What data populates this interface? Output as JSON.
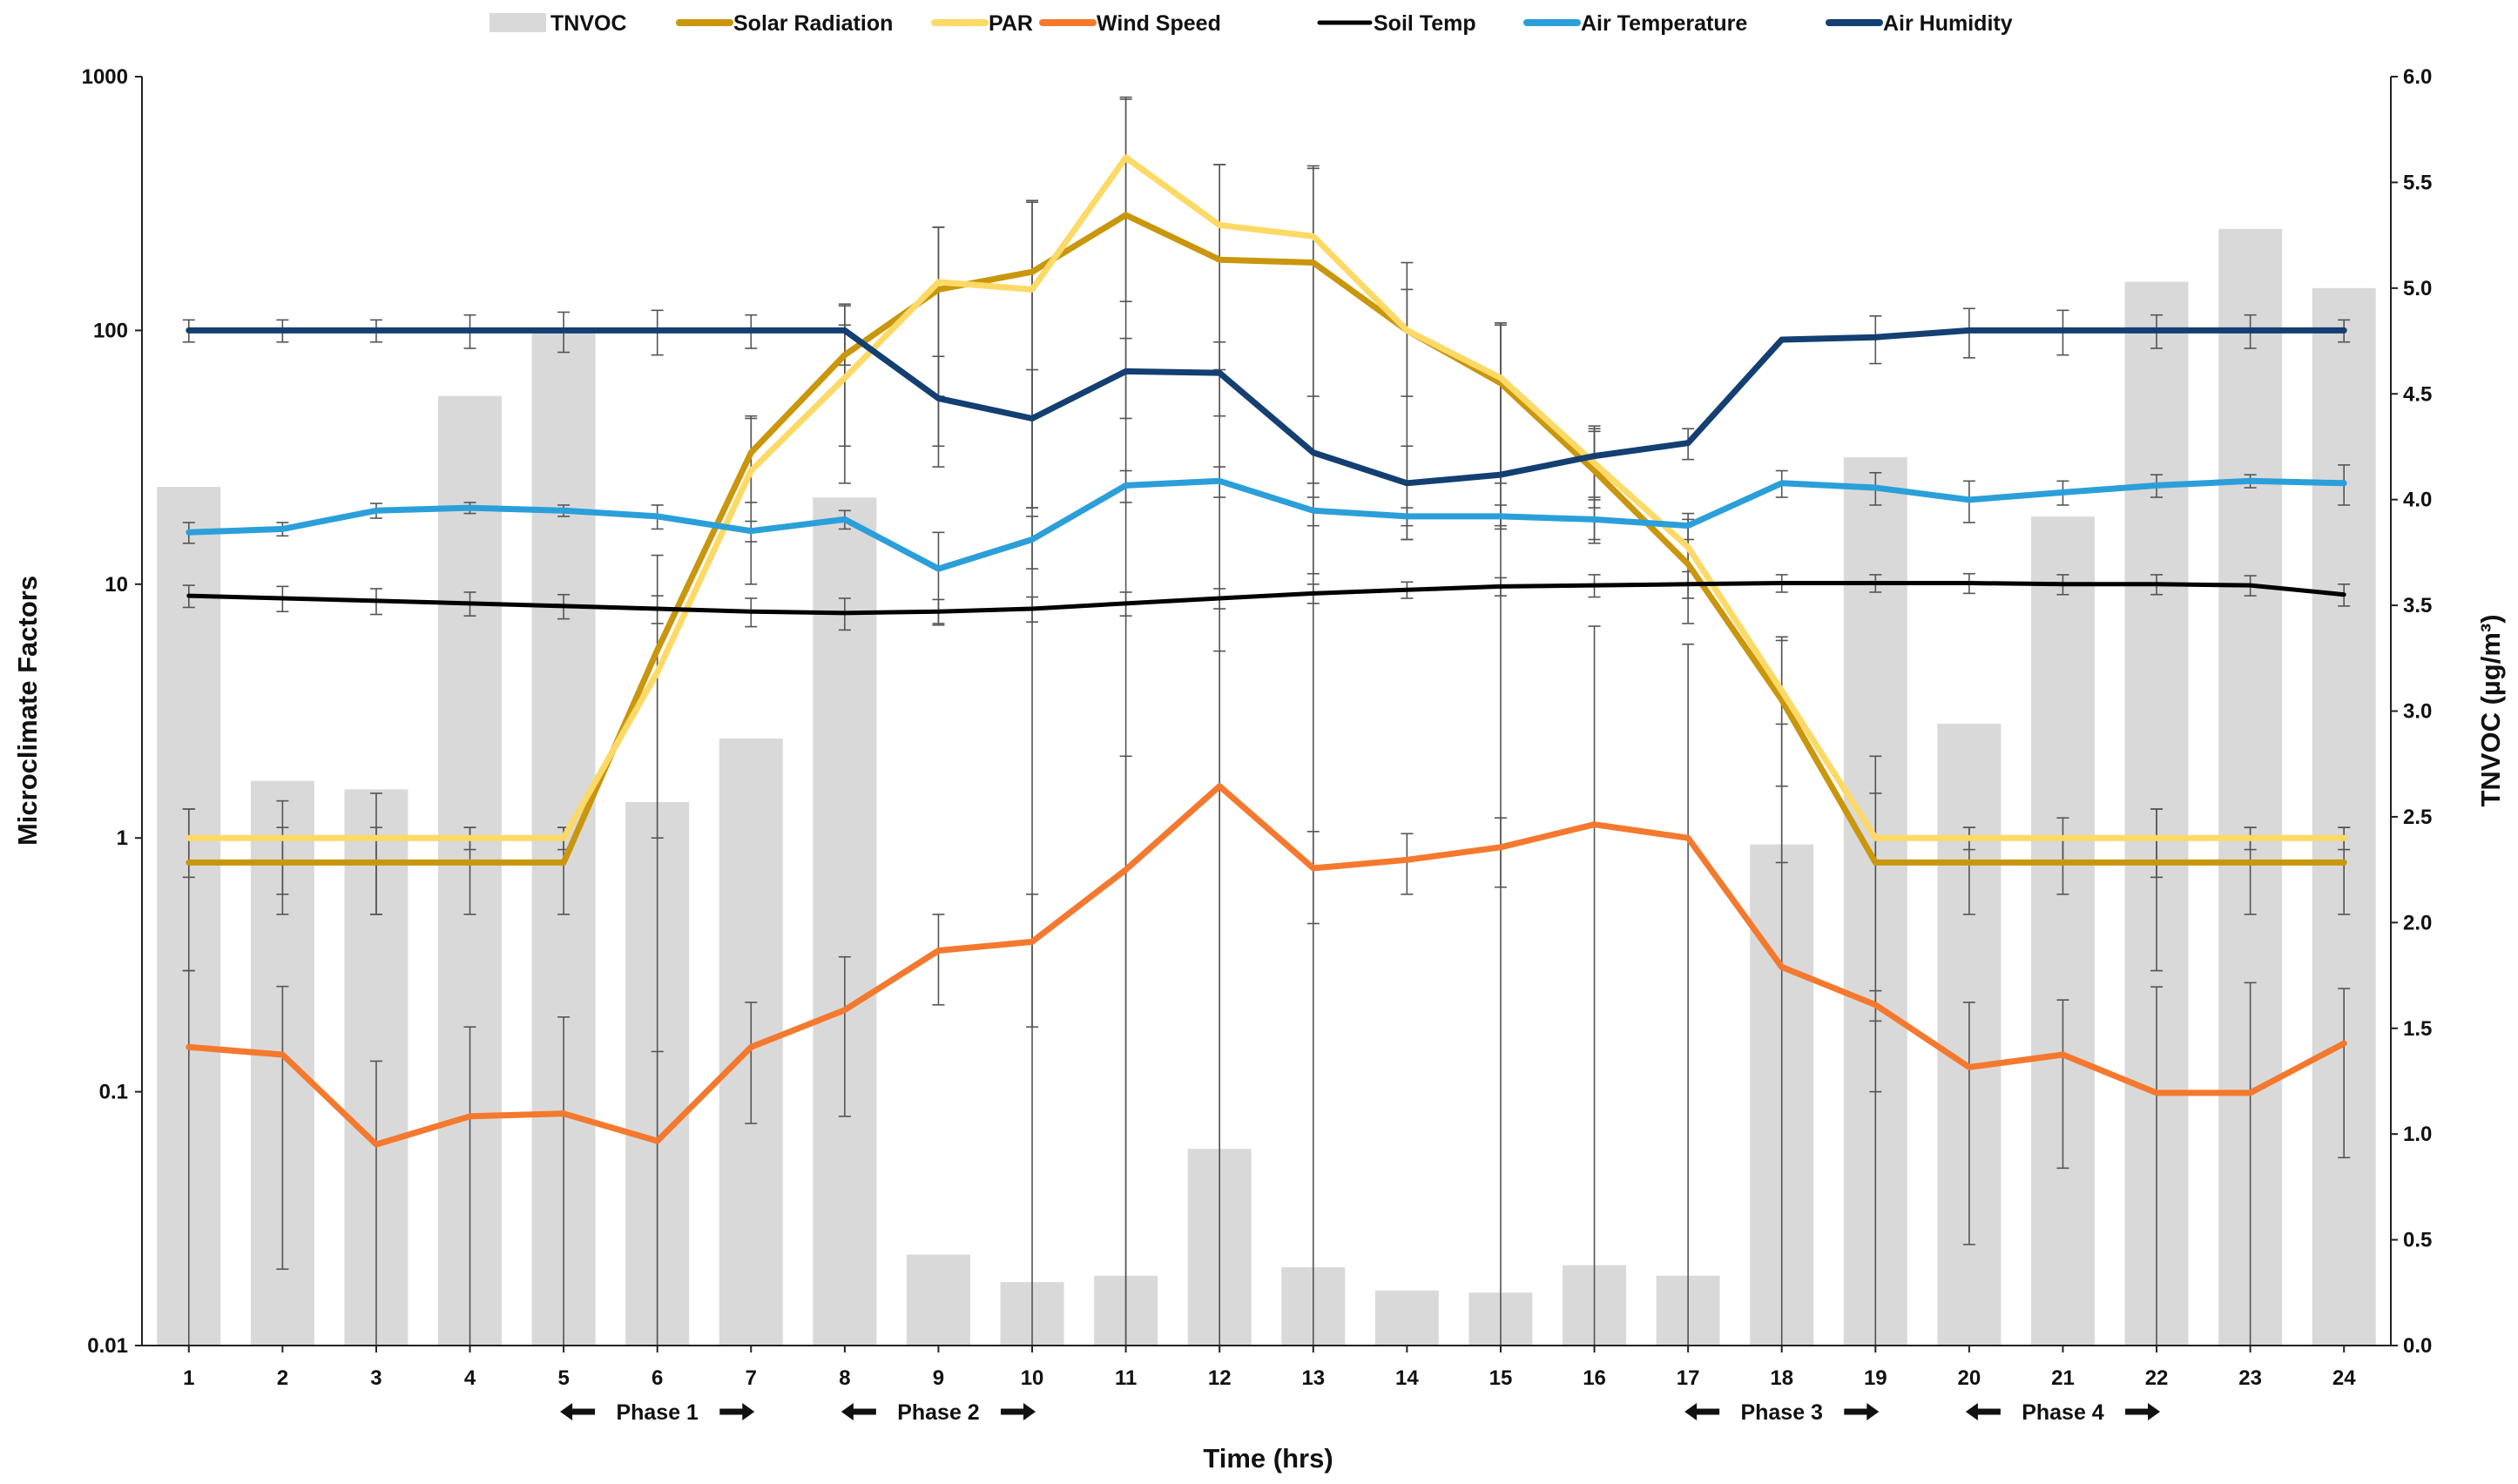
{
  "chart_data": {
    "type": "line+bar",
    "title": "",
    "xlabel": "Time (hrs)",
    "ylabel_left": "Microclimate Factors",
    "ylabel_right": "TNVOC (µg/m³)",
    "left_scale": "log",
    "ylim_left": [
      0.01,
      1000
    ],
    "ylim_right": [
      0,
      6.0
    ],
    "x": [
      1,
      2,
      3,
      4,
      5,
      6,
      7,
      8,
      9,
      10,
      11,
      12,
      13,
      14,
      15,
      16,
      17,
      18,
      19,
      20,
      21,
      22,
      23,
      24
    ],
    "x_tick_labels": [
      "1",
      "2",
      "3",
      "4",
      "5",
      "6",
      "7",
      "8",
      "9",
      "10",
      "11",
      "12",
      "13",
      "14",
      "15",
      "16",
      "17",
      "18",
      "19",
      "20",
      "21",
      "22",
      "23",
      "24"
    ],
    "left_tick_labels": [
      "0.01",
      "0.1",
      "1",
      "10",
      "100",
      "1000"
    ],
    "left_tick_values": [
      0.01,
      0.1,
      1,
      10,
      100,
      1000
    ],
    "right_tick_labels": [
      "0.0",
      "0.5",
      "1.0",
      "1.5",
      "2.0",
      "2.5",
      "3.0",
      "3.5",
      "4.0",
      "4.5",
      "5.0",
      "5.5",
      "6.0"
    ],
    "right_tick_values": [
      0,
      0.5,
      1,
      1.5,
      2,
      2.5,
      3,
      3.5,
      4,
      4.5,
      5,
      5.5,
      6
    ],
    "bars": {
      "name": "TNVOC",
      "color": "#d9d9d9",
      "values": [
        4.06,
        2.67,
        2.63,
        4.49,
        4.8,
        2.57,
        2.87,
        4.01,
        0.43,
        0.3,
        0.33,
        0.93,
        0.37,
        0.26,
        0.25,
        0.38,
        0.33,
        2.37,
        4.2,
        2.94,
        3.92,
        5.03,
        5.28,
        5.0
      ]
    },
    "series": [
      {
        "name": "Solar Radiation",
        "color": "#c9960c",
        "width": 7,
        "values": [
          0.8,
          0.8,
          0.8,
          0.8,
          0.8,
          5.5,
          33,
          80,
          145,
          170,
          285,
          190,
          185,
          100,
          62,
          28,
          12,
          3.5,
          0.8,
          0.8,
          0.8,
          0.8,
          0.8,
          0.8
        ],
        "errors": [
          0.5,
          0.3,
          0.3,
          0.3,
          0.3,
          7.5,
          12,
          45,
          110,
          150,
          530,
          260,
          250,
          85,
          45,
          13,
          5,
          2.7,
          0.7,
          0.3,
          0.2,
          0.5,
          0.3,
          0.3
        ]
      },
      {
        "name": "PAR",
        "color": "#fdd966",
        "width": 7,
        "values": [
          1,
          1,
          1,
          1,
          1,
          4.5,
          28,
          65,
          155,
          145,
          480,
          260,
          235,
          100,
          65,
          30,
          14,
          3.8,
          1,
          1,
          1,
          1,
          1,
          1
        ],
        "errors": [
          0.3,
          0.4,
          0.5,
          0.1,
          0.1,
          3.5,
          18,
          40,
          100,
          180,
          350,
          190,
          210,
          45,
          40,
          10,
          4,
          2.2,
          1.1,
          0.1,
          0.2,
          0.3,
          0.1,
          0.1
        ]
      },
      {
        "name": "Wind Speed",
        "color": "#f4792e",
        "width": 7,
        "values": [
          0.15,
          0.14,
          0.062,
          0.08,
          0.082,
          0.064,
          0.15,
          0.21,
          0.36,
          0.39,
          0.75,
          1.6,
          0.76,
          0.82,
          0.92,
          1.13,
          1.0,
          0.31,
          0.22,
          0.125,
          0.14,
          0.099,
          0.099,
          0.155
        ],
        "errors": [
          0.15,
          0.12,
          0.07,
          0.1,
          0.115,
          0.08,
          0.075,
          0.13,
          0.14,
          0.21,
          1.35,
          3.85,
          0.3,
          0.22,
          0.28,
          5.7,
          4.8,
          2.5,
          0.03,
          0.1,
          0.09,
          0.16,
          0.17,
          0.1
        ]
      },
      {
        "name": "Soil Temp",
        "color": "#000000",
        "width": 5,
        "values": [
          9.0,
          8.8,
          8.6,
          8.4,
          8.2,
          8.0,
          7.8,
          7.7,
          7.8,
          8.0,
          8.4,
          8.8,
          9.2,
          9.5,
          9.8,
          9.9,
          10.0,
          10.1,
          10.1,
          10.1,
          10.0,
          10.0,
          9.9,
          9.1
        ],
        "errors": [
          0.9,
          1.0,
          1.0,
          0.9,
          0.9,
          1.0,
          1.0,
          1.1,
          0.9,
          0.9,
          0.9,
          0.8,
          0.8,
          0.7,
          0.8,
          1.0,
          1.2,
          0.8,
          0.8,
          0.9,
          0.9,
          0.9,
          0.9,
          0.9
        ]
      },
      {
        "name": "Air Temperature",
        "color": "#2b9fd9",
        "width": 7,
        "values": [
          16,
          16.5,
          19.5,
          20,
          19.5,
          18.5,
          16.2,
          18,
          11.5,
          15,
          24.5,
          25.5,
          19.5,
          18.5,
          18.5,
          18,
          17,
          25,
          24,
          21.5,
          23,
          24.5,
          25.5,
          25
        ],
        "errors": [
          1.5,
          1.0,
          1.3,
          1.0,
          1.0,
          2.0,
          1.5,
          1.5,
          4.5,
          3.5,
          3.5,
          3.5,
          2.5,
          1.5,
          2.0,
          3.5,
          2.0,
          3.0,
          3.5,
          4.0,
          2.5,
          2.5,
          1.5,
          4.5
        ]
      },
      {
        "name": "Air Humidity",
        "color": "#133f72",
        "width": 7,
        "values": [
          100,
          100,
          100,
          100,
          100,
          100,
          100,
          100,
          54,
          45,
          69,
          68,
          33,
          25,
          27,
          32,
          36,
          92,
          94,
          100,
          100,
          100,
          100,
          100
        ],
        "errors": [
          10,
          10,
          10,
          15,
          18,
          20,
          15,
          27,
          25,
          25,
          24,
          22,
          22,
          10,
          80,
          10,
          5,
          0,
          20,
          22,
          20,
          15,
          15,
          10
        ]
      }
    ],
    "legend": [
      "TNVOC",
      "Solar Radiation",
      "PAR",
      "Wind Speed",
      "Soil Temp",
      "Air Temperature",
      "Air Humidity"
    ],
    "legend_position": "top-center",
    "grid": false,
    "phases": [
      {
        "label": "Phase 1",
        "start": 5,
        "end": 7
      },
      {
        "label": "Phase 2",
        "start": 8,
        "end": 10
      },
      {
        "label": "Phase 3",
        "start": 17,
        "end": 19
      },
      {
        "label": "Phase 4",
        "start": 20,
        "end": 22
      }
    ]
  }
}
